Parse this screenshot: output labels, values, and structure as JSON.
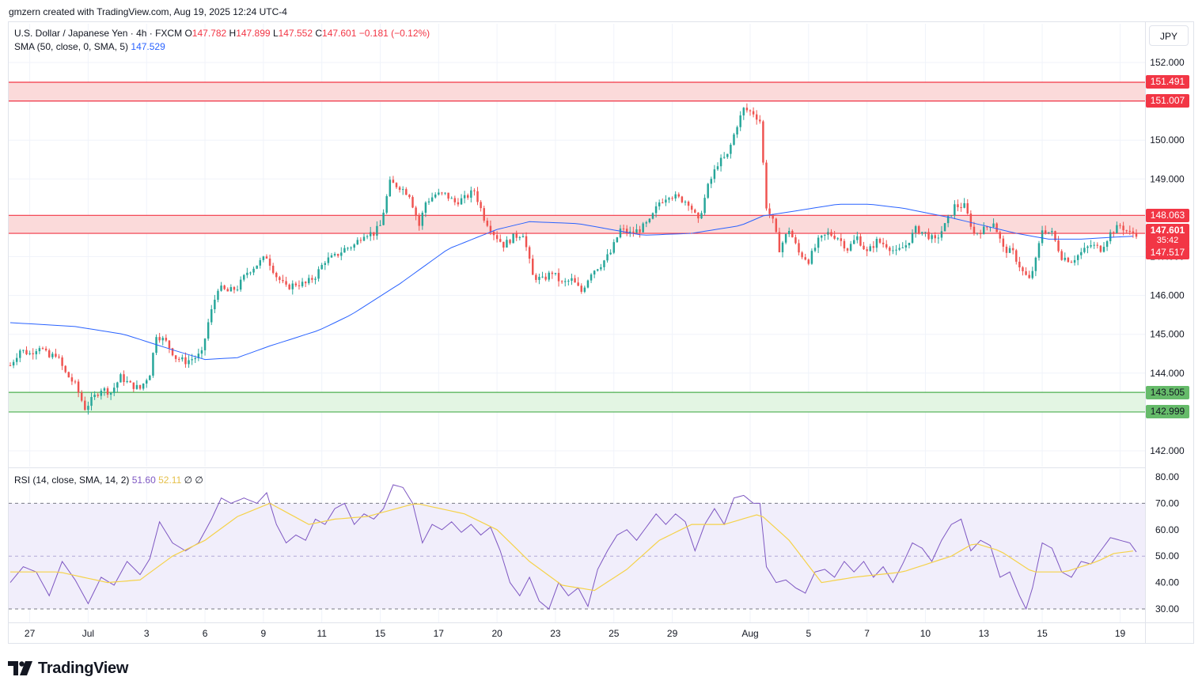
{
  "header": {
    "credit": "gmzern created with TradingView.com, Aug 19, 2025 12:24 UTC-4"
  },
  "legend": {
    "symbol": "U.S. Dollar / Japanese Yen · 4h · FXCM",
    "open_label": "O",
    "open": "147.782",
    "high_label": "H",
    "high": "147.899",
    "low_label": "L",
    "low": "147.552",
    "close_label": "C",
    "close": "147.601",
    "change": "−0.181 (−0.12%)",
    "sma_label": "SMA (50, close, 0, SMA, 5)",
    "sma_value": "147.529",
    "rsi_label": "RSI (14, close, SMA, 14, 2)",
    "rsi_value": "51.60",
    "rsi_sma_value": "52.11",
    "rsi_extra": "∅  ∅"
  },
  "currency": "JPY",
  "price_tags": {
    "zone_top_high": "151.491",
    "zone_top_low": "151.007",
    "zone_mid_high": "148.063",
    "current": "147.601",
    "countdown": "35:42",
    "sma": "147.517",
    "zone_low_high": "143.505",
    "zone_low_low": "142.999"
  },
  "colors": {
    "up": "#26a69a",
    "down": "#ef5350",
    "sma": "#2962ff",
    "rsi": "#7e57c2",
    "rsi_sma": "#f5d24a",
    "resistance_line": "#f23645",
    "support_line": "#4caf50",
    "resistance_fill": "#fbdada",
    "support_fill": "#e3f5e3",
    "rsi_band": "#f1eefb"
  },
  "footer": {
    "logo_text": "TradingView",
    "logo_icon": "tradingview-logo-icon"
  },
  "chart_data": {
    "type": "candlestick",
    "price_axis": {
      "ticks": [
        142,
        143,
        144,
        145,
        146,
        147,
        148,
        149,
        150,
        151,
        152
      ],
      "tick_labels": [
        "142.000",
        "143.000",
        "144.000",
        "145.000",
        "146.000",
        "147.000",
        "148.000",
        "149.000",
        "150.000",
        "151.000",
        "152.000"
      ],
      "range": [
        141.6,
        152.9
      ]
    },
    "rsi_axis": {
      "ticks": [
        30,
        40,
        50,
        60,
        70,
        80
      ],
      "tick_labels": [
        "30.00",
        "40.00",
        "50.00",
        "60.00",
        "70.00",
        "80.00"
      ],
      "range": [
        27,
        81
      ],
      "levels": [
        30,
        50,
        70
      ]
    },
    "time_axis": {
      "tick_labels": [
        "27",
        "Jul",
        "3",
        "6",
        "9",
        "11",
        "15",
        "17",
        "20",
        "23",
        "25",
        "29",
        "Aug",
        "5",
        "7",
        "10",
        "13",
        "15",
        "19"
      ],
      "tick_candle_index": [
        6,
        24,
        42,
        60,
        78,
        96,
        114,
        132,
        150,
        168,
        186,
        204,
        228,
        246,
        264,
        282,
        300,
        318,
        342
      ]
    },
    "zones": [
      {
        "name": "resistance-upper",
        "low": 151.007,
        "high": 151.491
      },
      {
        "name": "resistance-mid",
        "low": 147.6,
        "high": 148.063
      },
      {
        "name": "support",
        "low": 142.999,
        "high": 143.505
      }
    ],
    "anchors": [
      {
        "i": 0,
        "p": 144.2
      },
      {
        "i": 3,
        "p": 144.6
      },
      {
        "i": 6,
        "p": 144.5
      },
      {
        "i": 9,
        "p": 144.7
      },
      {
        "i": 12,
        "p": 144.4
      },
      {
        "i": 14,
        "p": 144.5
      },
      {
        "i": 17,
        "p": 144.0
      },
      {
        "i": 20,
        "p": 143.7
      },
      {
        "i": 23,
        "p": 143.1
      },
      {
        "i": 25,
        "p": 143.3
      },
      {
        "i": 28,
        "p": 143.6
      },
      {
        "i": 31,
        "p": 143.5
      },
      {
        "i": 34,
        "p": 143.9
      },
      {
        "i": 37,
        "p": 143.7
      },
      {
        "i": 40,
        "p": 143.6
      },
      {
        "i": 43,
        "p": 144.0
      },
      {
        "i": 45,
        "p": 145.0
      },
      {
        "i": 48,
        "p": 144.8
      },
      {
        "i": 51,
        "p": 144.4
      },
      {
        "i": 54,
        "p": 144.3
      },
      {
        "i": 57,
        "p": 144.4
      },
      {
        "i": 59,
        "p": 144.5
      },
      {
        "i": 61,
        "p": 145.3
      },
      {
        "i": 64,
        "p": 146.2
      },
      {
        "i": 67,
        "p": 146.1
      },
      {
        "i": 70,
        "p": 146.2
      },
      {
        "i": 73,
        "p": 146.6
      },
      {
        "i": 76,
        "p": 146.8
      },
      {
        "i": 79,
        "p": 147.0
      },
      {
        "i": 82,
        "p": 146.5
      },
      {
        "i": 85,
        "p": 146.2
      },
      {
        "i": 88,
        "p": 146.3
      },
      {
        "i": 91,
        "p": 146.3
      },
      {
        "i": 94,
        "p": 146.5
      },
      {
        "i": 97,
        "p": 146.9
      },
      {
        "i": 100,
        "p": 147.0
      },
      {
        "i": 103,
        "p": 147.2
      },
      {
        "i": 106,
        "p": 147.3
      },
      {
        "i": 109,
        "p": 147.6
      },
      {
        "i": 112,
        "p": 147.6
      },
      {
        "i": 114,
        "p": 147.8
      },
      {
        "i": 117,
        "p": 148.9
      },
      {
        "i": 120,
        "p": 148.8
      },
      {
        "i": 123,
        "p": 148.6
      },
      {
        "i": 126,
        "p": 147.8
      },
      {
        "i": 128,
        "p": 148.4
      },
      {
        "i": 131,
        "p": 148.6
      },
      {
        "i": 134,
        "p": 148.6
      },
      {
        "i": 137,
        "p": 148.4
      },
      {
        "i": 140,
        "p": 148.5
      },
      {
        "i": 143,
        "p": 148.7
      },
      {
        "i": 146,
        "p": 148.0
      },
      {
        "i": 149,
        "p": 147.6
      },
      {
        "i": 152,
        "p": 147.3
      },
      {
        "i": 155,
        "p": 147.5
      },
      {
        "i": 158,
        "p": 147.6
      },
      {
        "i": 161,
        "p": 146.5
      },
      {
        "i": 164,
        "p": 146.4
      },
      {
        "i": 167,
        "p": 146.6
      },
      {
        "i": 170,
        "p": 146.3
      },
      {
        "i": 173,
        "p": 146.4
      },
      {
        "i": 176,
        "p": 146.1
      },
      {
        "i": 179,
        "p": 146.6
      },
      {
        "i": 182,
        "p": 146.8
      },
      {
        "i": 185,
        "p": 147.1
      },
      {
        "i": 188,
        "p": 147.7
      },
      {
        "i": 191,
        "p": 147.6
      },
      {
        "i": 194,
        "p": 147.7
      },
      {
        "i": 197,
        "p": 147.9
      },
      {
        "i": 200,
        "p": 148.4
      },
      {
        "i": 203,
        "p": 148.6
      },
      {
        "i": 206,
        "p": 148.5
      },
      {
        "i": 209,
        "p": 148.4
      },
      {
        "i": 212,
        "p": 147.9
      },
      {
        "i": 215,
        "p": 148.8
      },
      {
        "i": 218,
        "p": 149.4
      },
      {
        "i": 221,
        "p": 149.6
      },
      {
        "i": 224,
        "p": 150.4
      },
      {
        "i": 226,
        "p": 150.8
      },
      {
        "i": 229,
        "p": 150.7
      },
      {
        "i": 231,
        "p": 150.5
      },
      {
        "i": 233,
        "p": 148.3
      },
      {
        "i": 235,
        "p": 147.9
      },
      {
        "i": 237,
        "p": 147.2
      },
      {
        "i": 240,
        "p": 147.7
      },
      {
        "i": 243,
        "p": 147.1
      },
      {
        "i": 246,
        "p": 146.9
      },
      {
        "i": 249,
        "p": 147.4
      },
      {
        "i": 252,
        "p": 147.6
      },
      {
        "i": 255,
        "p": 147.5
      },
      {
        "i": 258,
        "p": 147.2
      },
      {
        "i": 261,
        "p": 147.5
      },
      {
        "i": 264,
        "p": 147.1
      },
      {
        "i": 267,
        "p": 147.4
      },
      {
        "i": 270,
        "p": 147.3
      },
      {
        "i": 273,
        "p": 147.1
      },
      {
        "i": 276,
        "p": 147.3
      },
      {
        "i": 279,
        "p": 147.7
      },
      {
        "i": 282,
        "p": 147.6
      },
      {
        "i": 285,
        "p": 147.4
      },
      {
        "i": 288,
        "p": 147.8
      },
      {
        "i": 291,
        "p": 148.3
      },
      {
        "i": 294,
        "p": 148.3
      },
      {
        "i": 297,
        "p": 147.6
      },
      {
        "i": 300,
        "p": 147.7
      },
      {
        "i": 303,
        "p": 147.9
      },
      {
        "i": 306,
        "p": 147.2
      },
      {
        "i": 309,
        "p": 147.1
      },
      {
        "i": 312,
        "p": 146.6
      },
      {
        "i": 314,
        "p": 146.4
      },
      {
        "i": 316,
        "p": 146.9
      },
      {
        "i": 318,
        "p": 147.7
      },
      {
        "i": 321,
        "p": 147.6
      },
      {
        "i": 324,
        "p": 147.0
      },
      {
        "i": 327,
        "p": 146.9
      },
      {
        "i": 330,
        "p": 147.1
      },
      {
        "i": 333,
        "p": 147.3
      },
      {
        "i": 336,
        "p": 147.2
      },
      {
        "i": 339,
        "p": 147.6
      },
      {
        "i": 342,
        "p": 147.8
      },
      {
        "i": 345,
        "p": 147.6
      },
      {
        "i": 347,
        "p": 147.6
      }
    ],
    "sma_path": [
      {
        "i": 0,
        "p": 145.3
      },
      {
        "i": 20,
        "p": 145.2
      },
      {
        "i": 35,
        "p": 145.0
      },
      {
        "i": 50,
        "p": 144.6
      },
      {
        "i": 60,
        "p": 144.35
      },
      {
        "i": 70,
        "p": 144.4
      },
      {
        "i": 80,
        "p": 144.7
      },
      {
        "i": 95,
        "p": 145.1
      },
      {
        "i": 105,
        "p": 145.5
      },
      {
        "i": 120,
        "p": 146.3
      },
      {
        "i": 135,
        "p": 147.2
      },
      {
        "i": 150,
        "p": 147.7
      },
      {
        "i": 160,
        "p": 147.9
      },
      {
        "i": 175,
        "p": 147.85
      },
      {
        "i": 185,
        "p": 147.7
      },
      {
        "i": 195,
        "p": 147.55
      },
      {
        "i": 210,
        "p": 147.6
      },
      {
        "i": 225,
        "p": 147.8
      },
      {
        "i": 232,
        "p": 148.05
      },
      {
        "i": 240,
        "p": 148.15
      },
      {
        "i": 255,
        "p": 148.35
      },
      {
        "i": 265,
        "p": 148.35
      },
      {
        "i": 275,
        "p": 148.25
      },
      {
        "i": 290,
        "p": 148.0
      },
      {
        "i": 300,
        "p": 147.8
      },
      {
        "i": 310,
        "p": 147.6
      },
      {
        "i": 320,
        "p": 147.45
      },
      {
        "i": 330,
        "p": 147.45
      },
      {
        "i": 340,
        "p": 147.5
      },
      {
        "i": 347,
        "p": 147.53
      }
    ],
    "rsi_path": [
      {
        "i": 0,
        "p": 40
      },
      {
        "i": 4,
        "p": 46
      },
      {
        "i": 8,
        "p": 44
      },
      {
        "i": 12,
        "p": 35
      },
      {
        "i": 16,
        "p": 48
      },
      {
        "i": 20,
        "p": 41
      },
      {
        "i": 24,
        "p": 32
      },
      {
        "i": 28,
        "p": 42
      },
      {
        "i": 32,
        "p": 39
      },
      {
        "i": 36,
        "p": 48
      },
      {
        "i": 40,
        "p": 43
      },
      {
        "i": 43,
        "p": 49
      },
      {
        "i": 46,
        "p": 63
      },
      {
        "i": 50,
        "p": 55
      },
      {
        "i": 54,
        "p": 52
      },
      {
        "i": 58,
        "p": 55
      },
      {
        "i": 62,
        "p": 64
      },
      {
        "i": 65,
        "p": 72
      },
      {
        "i": 68,
        "p": 70
      },
      {
        "i": 72,
        "p": 72
      },
      {
        "i": 76,
        "p": 70
      },
      {
        "i": 79,
        "p": 74
      },
      {
        "i": 82,
        "p": 62
      },
      {
        "i": 85,
        "p": 55
      },
      {
        "i": 88,
        "p": 58
      },
      {
        "i": 91,
        "p": 56
      },
      {
        "i": 94,
        "p": 64
      },
      {
        "i": 97,
        "p": 62
      },
      {
        "i": 100,
        "p": 68
      },
      {
        "i": 103,
        "p": 70
      },
      {
        "i": 106,
        "p": 62
      },
      {
        "i": 109,
        "p": 66
      },
      {
        "i": 112,
        "p": 64
      },
      {
        "i": 115,
        "p": 68
      },
      {
        "i": 118,
        "p": 77
      },
      {
        "i": 121,
        "p": 76
      },
      {
        "i": 124,
        "p": 70
      },
      {
        "i": 127,
        "p": 55
      },
      {
        "i": 130,
        "p": 62
      },
      {
        "i": 133,
        "p": 60
      },
      {
        "i": 136,
        "p": 63
      },
      {
        "i": 139,
        "p": 59
      },
      {
        "i": 142,
        "p": 62
      },
      {
        "i": 145,
        "p": 58
      },
      {
        "i": 148,
        "p": 61
      },
      {
        "i": 151,
        "p": 52
      },
      {
        "i": 154,
        "p": 40
      },
      {
        "i": 157,
        "p": 35
      },
      {
        "i": 160,
        "p": 42
      },
      {
        "i": 163,
        "p": 33
      },
      {
        "i": 166,
        "p": 30
      },
      {
        "i": 169,
        "p": 40
      },
      {
        "i": 172,
        "p": 35
      },
      {
        "i": 175,
        "p": 38
      },
      {
        "i": 178,
        "p": 31
      },
      {
        "i": 181,
        "p": 45
      },
      {
        "i": 184,
        "p": 52
      },
      {
        "i": 187,
        "p": 58
      },
      {
        "i": 190,
        "p": 60
      },
      {
        "i": 193,
        "p": 56
      },
      {
        "i": 196,
        "p": 61
      },
      {
        "i": 199,
        "p": 66
      },
      {
        "i": 202,
        "p": 62
      },
      {
        "i": 205,
        "p": 66
      },
      {
        "i": 208,
        "p": 63
      },
      {
        "i": 211,
        "p": 52
      },
      {
        "i": 214,
        "p": 62
      },
      {
        "i": 217,
        "p": 68
      },
      {
        "i": 220,
        "p": 62
      },
      {
        "i": 223,
        "p": 72
      },
      {
        "i": 226,
        "p": 73
      },
      {
        "i": 229,
        "p": 70
      },
      {
        "i": 231,
        "p": 70
      },
      {
        "i": 233,
        "p": 46
      },
      {
        "i": 236,
        "p": 40
      },
      {
        "i": 239,
        "p": 41
      },
      {
        "i": 242,
        "p": 38
      },
      {
        "i": 245,
        "p": 36
      },
      {
        "i": 248,
        "p": 44
      },
      {
        "i": 251,
        "p": 45
      },
      {
        "i": 254,
        "p": 42
      },
      {
        "i": 257,
        "p": 48
      },
      {
        "i": 260,
        "p": 44
      },
      {
        "i": 263,
        "p": 48
      },
      {
        "i": 266,
        "p": 42
      },
      {
        "i": 269,
        "p": 46
      },
      {
        "i": 272,
        "p": 40
      },
      {
        "i": 275,
        "p": 47
      },
      {
        "i": 278,
        "p": 55
      },
      {
        "i": 281,
        "p": 53
      },
      {
        "i": 284,
        "p": 48
      },
      {
        "i": 287,
        "p": 56
      },
      {
        "i": 290,
        "p": 62
      },
      {
        "i": 293,
        "p": 64
      },
      {
        "i": 296,
        "p": 52
      },
      {
        "i": 299,
        "p": 56
      },
      {
        "i": 302,
        "p": 54
      },
      {
        "i": 305,
        "p": 42
      },
      {
        "i": 308,
        "p": 44
      },
      {
        "i": 311,
        "p": 35
      },
      {
        "i": 313,
        "p": 30
      },
      {
        "i": 315,
        "p": 38
      },
      {
        "i": 318,
        "p": 55
      },
      {
        "i": 321,
        "p": 53
      },
      {
        "i": 324,
        "p": 44
      },
      {
        "i": 327,
        "p": 42
      },
      {
        "i": 330,
        "p": 48
      },
      {
        "i": 333,
        "p": 47
      },
      {
        "i": 336,
        "p": 52
      },
      {
        "i": 339,
        "p": 57
      },
      {
        "i": 342,
        "p": 56
      },
      {
        "i": 345,
        "p": 55
      },
      {
        "i": 347,
        "p": 51.6
      }
    ],
    "rsi_sma_path": [
      {
        "i": 0,
        "p": 44
      },
      {
        "i": 15,
        "p": 44
      },
      {
        "i": 30,
        "p": 40
      },
      {
        "i": 40,
        "p": 41
      },
      {
        "i": 50,
        "p": 50
      },
      {
        "i": 60,
        "p": 56
      },
      {
        "i": 70,
        "p": 65
      },
      {
        "i": 80,
        "p": 70
      },
      {
        "i": 92,
        "p": 62
      },
      {
        "i": 100,
        "p": 64
      },
      {
        "i": 110,
        "p": 65
      },
      {
        "i": 125,
        "p": 70
      },
      {
        "i": 140,
        "p": 66
      },
      {
        "i": 150,
        "p": 60
      },
      {
        "i": 160,
        "p": 48
      },
      {
        "i": 170,
        "p": 39
      },
      {
        "i": 180,
        "p": 37
      },
      {
        "i": 190,
        "p": 45
      },
      {
        "i": 200,
        "p": 56
      },
      {
        "i": 210,
        "p": 62
      },
      {
        "i": 220,
        "p": 62
      },
      {
        "i": 231,
        "p": 66
      },
      {
        "i": 240,
        "p": 56
      },
      {
        "i": 250,
        "p": 40
      },
      {
        "i": 260,
        "p": 42
      },
      {
        "i": 275,
        "p": 44
      },
      {
        "i": 290,
        "p": 50
      },
      {
        "i": 297,
        "p": 55
      },
      {
        "i": 305,
        "p": 52
      },
      {
        "i": 315,
        "p": 44
      },
      {
        "i": 325,
        "p": 44
      },
      {
        "i": 335,
        "p": 48
      },
      {
        "i": 340,
        "p": 51
      },
      {
        "i": 347,
        "p": 52.1
      }
    ]
  }
}
